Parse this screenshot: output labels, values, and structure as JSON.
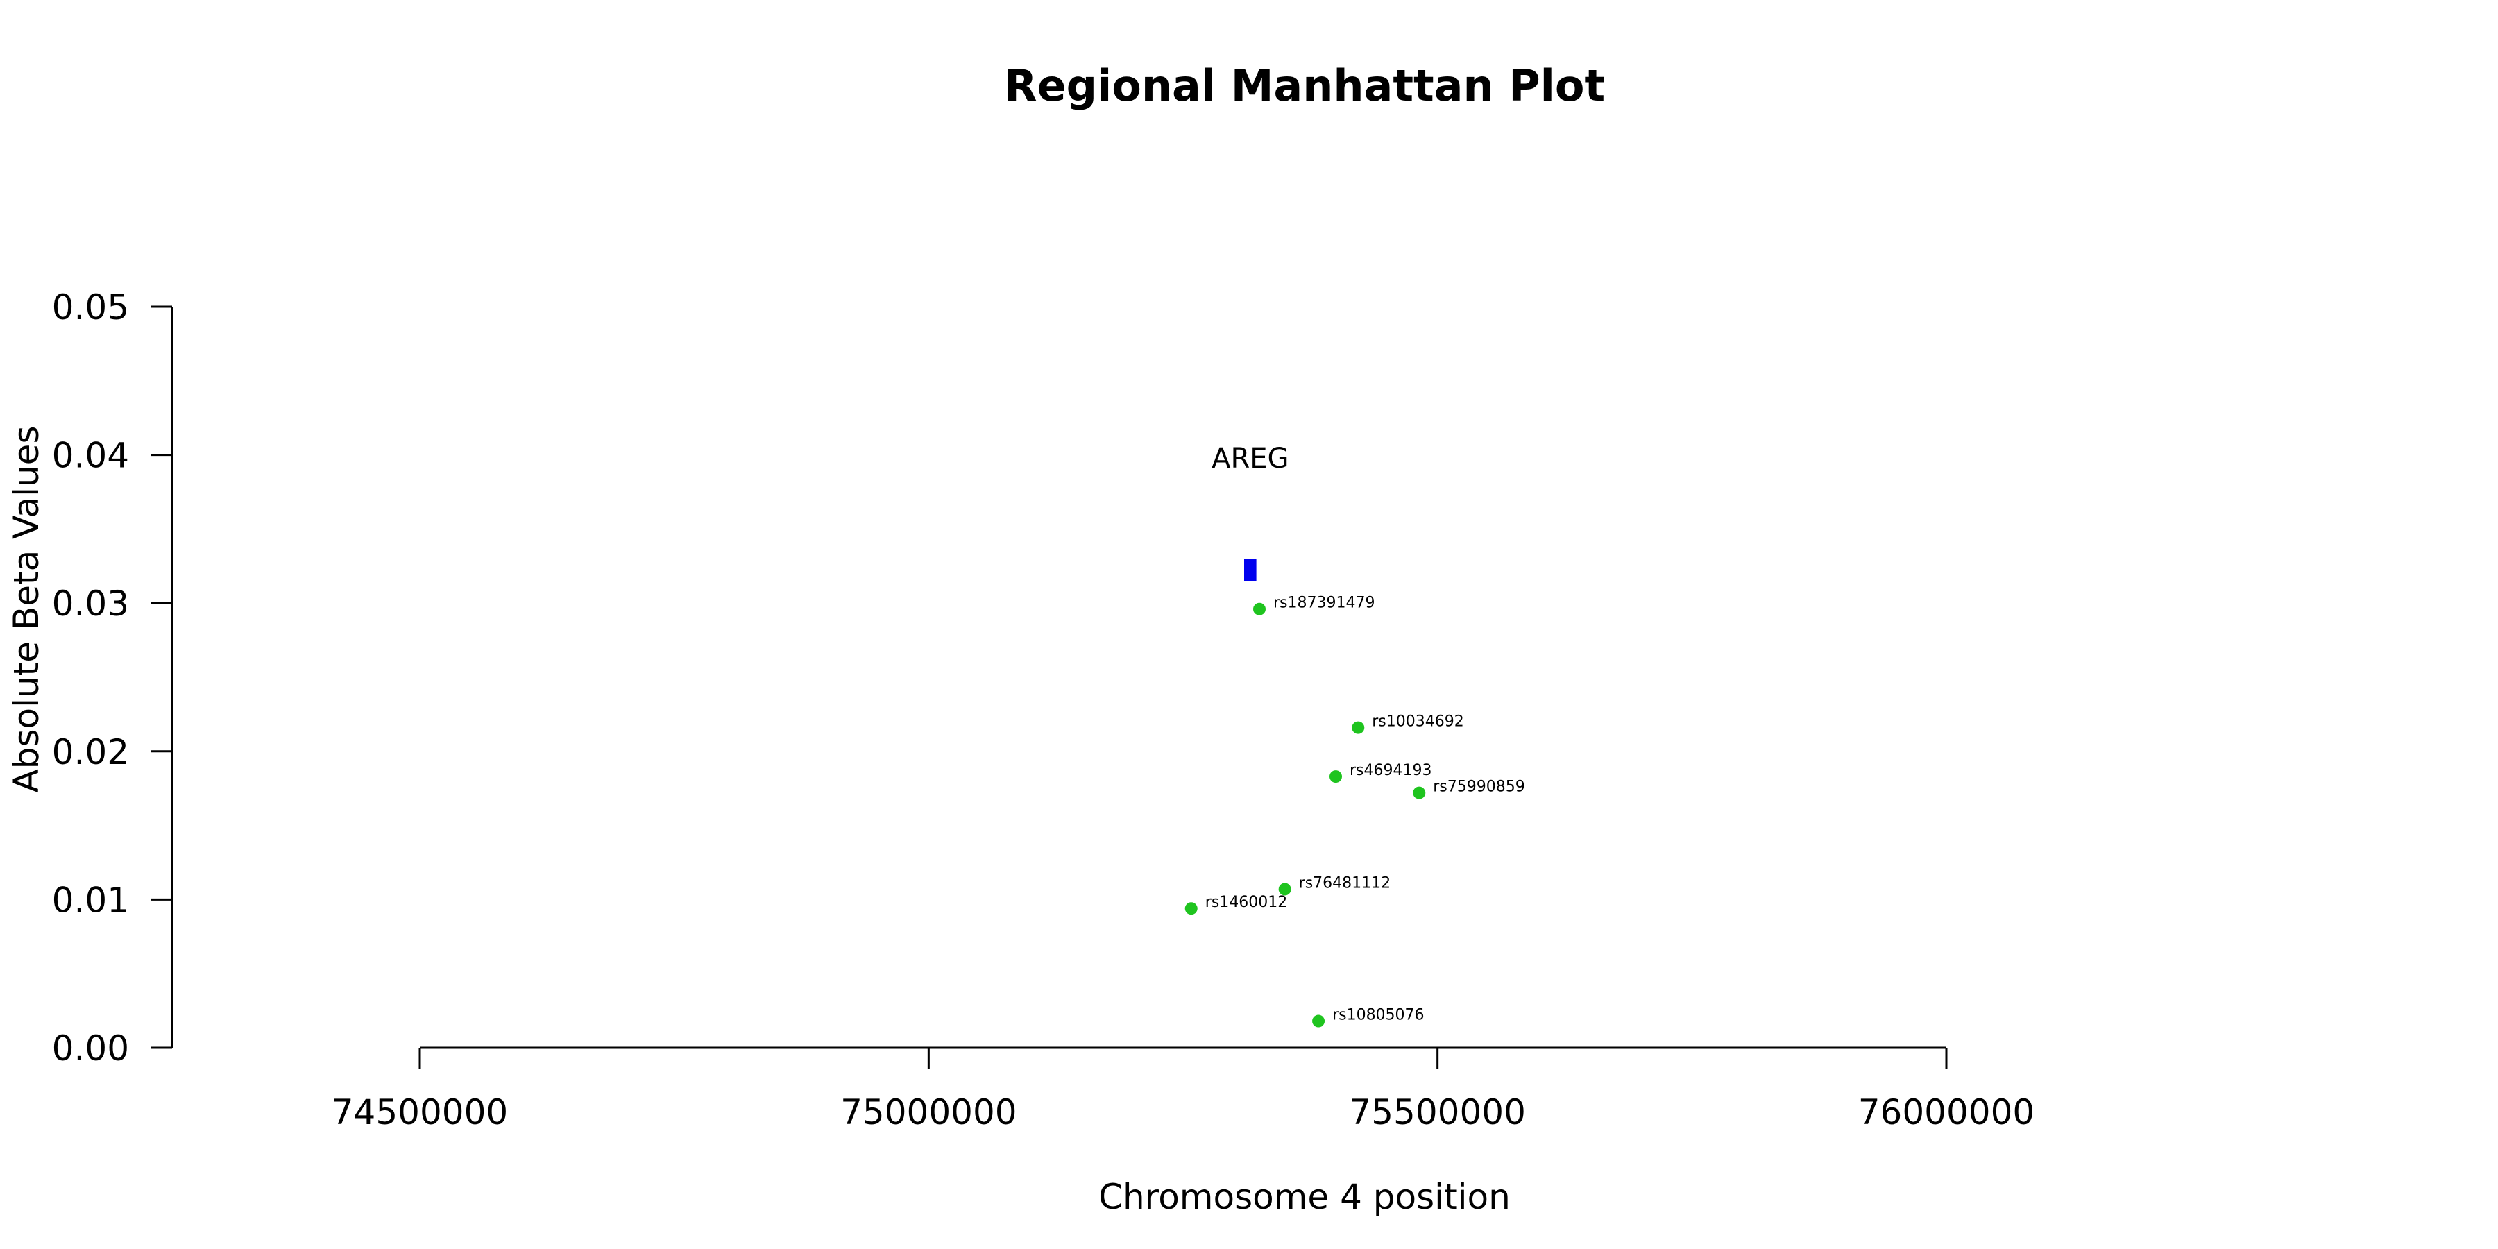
{
  "chart_data": {
    "type": "scatter",
    "title": "Regional Manhattan Plot",
    "xlabel": "Chromosome 4 position",
    "ylabel": "Absolute Beta Values",
    "xlim": [
      74500000,
      76000000
    ],
    "ylim": [
      0,
      0.05
    ],
    "x_ticks": [
      74500000,
      75000000,
      75500000,
      76000000
    ],
    "x_tick_labels": [
      "74500000",
      "75000000",
      "75500000",
      "76000000"
    ],
    "y_ticks": [
      0,
      0.01,
      0.02,
      0.03,
      0.04,
      0.05
    ],
    "y_tick_labels": [
      "0.00",
      "0.01",
      "0.02",
      "0.03",
      "0.04",
      "0.05"
    ],
    "grid": false,
    "point_color": "#1fc41f",
    "gene_color": "#0000ee",
    "genes": [
      {
        "name": "AREG",
        "start": 75310000,
        "end": 75322000,
        "y_low": 0.0315,
        "y_high": 0.033,
        "label_y": 0.0398
      }
    ],
    "points": [
      {
        "label": "rs187391479",
        "x": 75325000,
        "y": 0.0296
      },
      {
        "label": "rs10034692",
        "x": 75422000,
        "y": 0.0216
      },
      {
        "label": "rs4694193",
        "x": 75400000,
        "y": 0.0183
      },
      {
        "label": "rs75990859",
        "x": 75482000,
        "y": 0.0172
      },
      {
        "label": "rs76481112",
        "x": 75350000,
        "y": 0.0107
      },
      {
        "label": "rs1460012",
        "x": 75258000,
        "y": 0.0094
      },
      {
        "label": "rs10805076",
        "x": 75383000,
        "y": 0.0018
      }
    ]
  }
}
